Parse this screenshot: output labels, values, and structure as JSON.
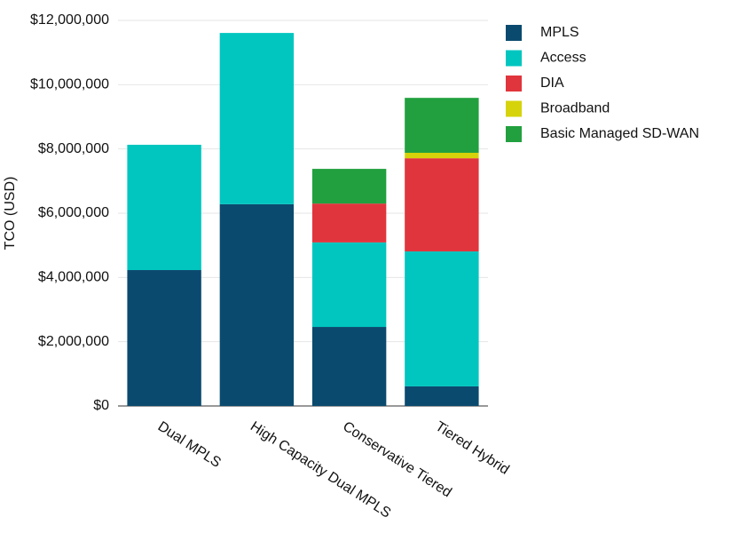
{
  "chart_data": {
    "type": "stacked-bar",
    "y_label": "TCO (USD)",
    "categories": [
      "Dual MPLS",
      "High Capacity Dual MPLS",
      "Conservative Tiered",
      "Tiered Hybrid"
    ],
    "series": [
      {
        "name": "MPLS",
        "color": "#0b4a6f",
        "values": [
          4230000,
          6280000,
          2460000,
          610000
        ]
      },
      {
        "name": "Access",
        "color": "#00c6bf",
        "values": [
          3900000,
          5330000,
          2630000,
          4200000
        ]
      },
      {
        "name": "DIA",
        "color": "#e0353d",
        "values": [
          0,
          0,
          1210000,
          2900000
        ]
      },
      {
        "name": "Broadband",
        "color": "#d6d30b",
        "values": [
          0,
          0,
          0,
          170000
        ]
      },
      {
        "name": "Basic Managed SD-WAN",
        "color": "#22a03f",
        "values": [
          0,
          0,
          1080000,
          1710000
        ]
      }
    ],
    "ylim": [
      0,
      12000000
    ],
    "yticks": [
      {
        "value": 0,
        "label": "$0"
      },
      {
        "value": 2000000,
        "label": "$2,000,000"
      },
      {
        "value": 4000000,
        "label": "$4,000,000"
      },
      {
        "value": 6000000,
        "label": "$6,000,000"
      },
      {
        "value": 8000000,
        "label": "$8,000,000"
      },
      {
        "value": 10000000,
        "label": "$10,000,000"
      },
      {
        "value": 12000000,
        "label": "$12,000,000"
      }
    ],
    "grid": true,
    "legend": "right"
  }
}
